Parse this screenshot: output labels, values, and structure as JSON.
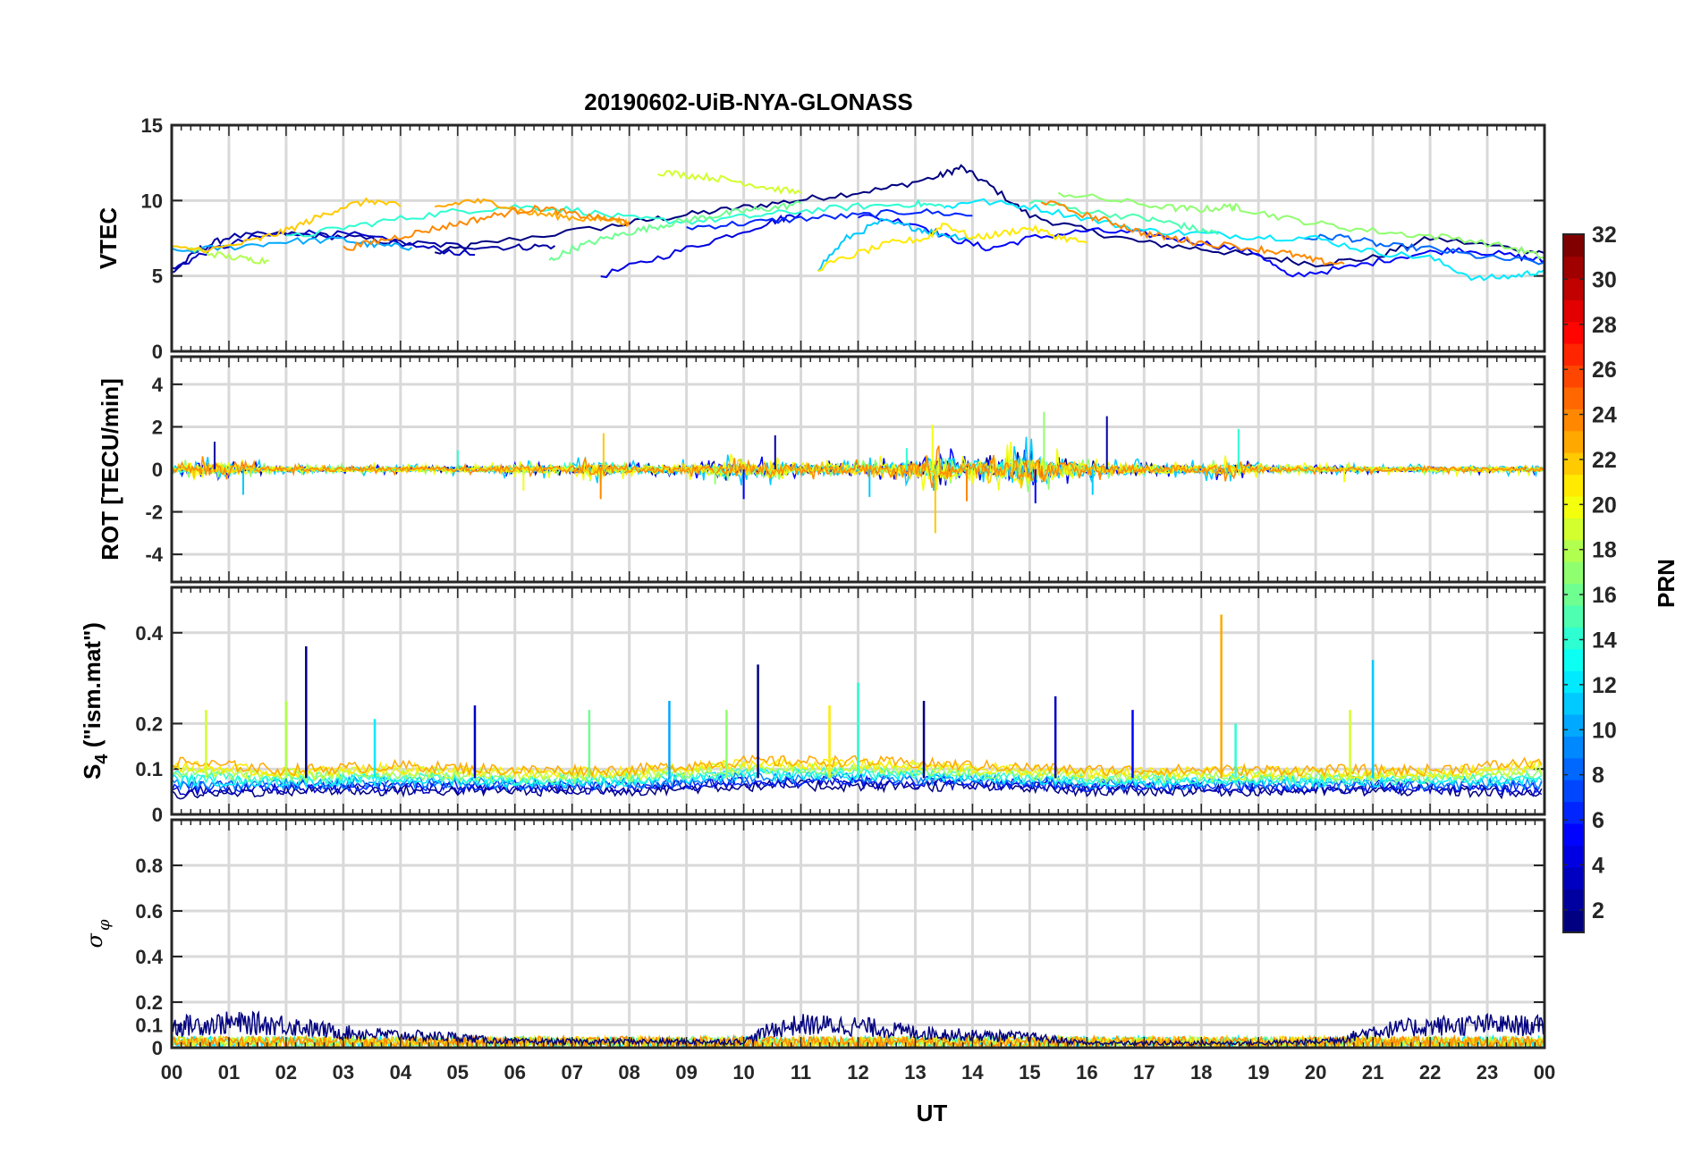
{
  "chart_data": {
    "type": "line",
    "title": "20190602-UiB-NYA-GLONASS",
    "xlabel": "UT",
    "x_tick_labels": [
      "00",
      "01",
      "02",
      "03",
      "04",
      "05",
      "06",
      "07",
      "08",
      "09",
      "10",
      "11",
      "12",
      "13",
      "14",
      "15",
      "16",
      "17",
      "18",
      "19",
      "20",
      "21",
      "22",
      "23",
      "00"
    ],
    "xlim_hours": [
      0,
      24
    ],
    "grid": true,
    "colormap": "jet",
    "colorbar": {
      "label": "PRN",
      "range": [
        1,
        32
      ],
      "tick_labels": [
        "2",
        "4",
        "6",
        "8",
        "10",
        "12",
        "14",
        "16",
        "18",
        "20",
        "22",
        "24",
        "26",
        "28",
        "30",
        "32"
      ],
      "placement": "right"
    },
    "panels": [
      {
        "key": "vtec",
        "ylabel": "VTEC",
        "ylim": [
          0,
          15
        ],
        "y_ticks": [
          0,
          5,
          10,
          15
        ],
        "series": [
          {
            "prn": 1,
            "x": [
              4.6,
              5.5,
              7.5,
              8.5,
              9.5,
              10.5,
              11.5,
              12.5,
              13.4,
              13.8,
              14.3,
              15.0,
              16.0,
              17.0,
              18.0,
              19.0,
              20.0,
              21.0,
              22.0,
              23.5,
              24.0
            ],
            "y": [
              6.5,
              7.2,
              8.2,
              8.8,
              9.3,
              9.8,
              10.3,
              10.8,
              11.6,
              12.2,
              11.0,
              9.0,
              8.0,
              7.2,
              6.8,
              6.3,
              5.8,
              6.2,
              7.5,
              6.8,
              6.5
            ]
          },
          {
            "prn": 2,
            "x": [
              0.0,
              0.5,
              1.0,
              2.0,
              3.0,
              4.0,
              5.0,
              6.0,
              6.7
            ],
            "y": [
              5.2,
              6.8,
              7.6,
              7.8,
              7.6,
              7.2,
              7.0,
              6.9,
              7.0
            ]
          },
          {
            "prn": 3,
            "x": [
              0.0,
              0.6,
              1.4,
              2.2,
              3.2,
              4.4,
              5.3
            ],
            "y": [
              5.4,
              6.6,
              7.5,
              7.9,
              7.7,
              6.9,
              6.4
            ]
          },
          {
            "prn": 4,
            "x": [
              7.5,
              8.5,
              9.5,
              10.5,
              11.0
            ],
            "y": [
              5.0,
              6.2,
              7.4,
              8.6,
              9.2
            ]
          },
          {
            "prn": 5,
            "x": [
              12.0,
              13.0,
              13.6,
              14.3,
              15.0,
              16.0,
              17.0,
              18.0,
              19.0,
              19.5,
              20.5,
              21.5,
              22.5,
              23.5,
              24.0
            ],
            "y": [
              9.0,
              8.5,
              7.5,
              6.8,
              7.5,
              8.0,
              7.8,
              7.2,
              6.5,
              5.0,
              5.5,
              6.3,
              6.8,
              6.3,
              6.0
            ]
          },
          {
            "prn": 6,
            "x": [
              9.0,
              10.0,
              11.0,
              12.0,
              13.0,
              14.0
            ],
            "y": [
              8.2,
              8.5,
              8.8,
              9.0,
              9.3,
              9.0
            ]
          },
          {
            "prn": 8,
            "x": [
              19.8,
              20.5,
              21.2,
              22.0,
              23.0,
              24.0
            ],
            "y": [
              7.5,
              7.6,
              7.0,
              6.8,
              6.2,
              5.9
            ]
          },
          {
            "prn": 10,
            "x": [
              0.0,
              1.0,
              2.0,
              3.0,
              3.6,
              4.2
            ],
            "y": [
              6.6,
              6.9,
              7.3,
              7.4,
              7.0,
              6.9
            ]
          },
          {
            "prn": 11,
            "x": [
              11.3,
              11.8,
              12.4,
              13.0,
              13.4,
              14.0
            ],
            "y": [
              5.5,
              7.5,
              8.6,
              8.2,
              7.8,
              7.5
            ]
          },
          {
            "prn": 12,
            "x": [
              13.5,
              14.0,
              15.0,
              16.0,
              17.0,
              18.0,
              19.0,
              20.0,
              21.0,
              22.0,
              22.8,
              23.5,
              24.0
            ],
            "y": [
              9.5,
              10.0,
              9.6,
              8.8,
              8.0,
              7.8,
              7.6,
              7.5,
              6.6,
              6.2,
              4.8,
              5.0,
              5.4
            ]
          },
          {
            "prn": 14,
            "x": [
              2.0,
              3.0,
              4.0,
              5.0,
              6.0,
              7.0,
              8.0,
              9.0,
              10.0,
              11.0,
              12.0,
              13.0,
              13.5
            ],
            "y": [
              7.5,
              8.2,
              8.8,
              9.3,
              9.6,
              9.4,
              8.8,
              8.6,
              8.9,
              9.3,
              9.6,
              9.8,
              9.6
            ]
          },
          {
            "prn": 15,
            "x": [
              15.0,
              16.0,
              17.0,
              17.5,
              18.0,
              18.3
            ],
            "y": [
              10.0,
              9.3,
              8.8,
              8.5,
              8.0,
              7.8
            ]
          },
          {
            "prn": 16,
            "x": [
              6.6,
              7.0,
              7.5,
              8.0,
              8.5,
              9.0,
              9.5,
              10.0,
              10.5,
              11.0
            ],
            "y": [
              6.0,
              6.8,
              7.4,
              7.9,
              8.3,
              8.7,
              9.0,
              9.3,
              9.5,
              9.8
            ]
          },
          {
            "prn": 17,
            "x": [
              15.5,
              16.5,
              17.5,
              18.0,
              18.5,
              18.7,
              19.5,
              20.5,
              21.5,
              22.5,
              23.5,
              24.0
            ],
            "y": [
              10.5,
              10.0,
              9.5,
              9.4,
              9.6,
              9.5,
              8.8,
              8.2,
              7.8,
              7.5,
              6.8,
              6.2
            ]
          },
          {
            "prn": 18,
            "x": [
              0.3,
              0.8,
              1.3,
              1.7
            ],
            "y": [
              6.8,
              6.4,
              6.1,
              6.0
            ]
          },
          {
            "prn": 19,
            "x": [
              8.5,
              9.0,
              9.5,
              10.0,
              10.5,
              11.0
            ],
            "y": [
              11.9,
              11.7,
              11.5,
              11.2,
              10.8,
              10.5
            ]
          },
          {
            "prn": 21,
            "x": [
              11.3,
              12.0,
              12.6,
              13.2,
              13.5,
              14.0,
              14.5,
              15.0,
              15.5,
              16.0
            ],
            "y": [
              5.5,
              6.5,
              7.2,
              7.5,
              8.5,
              7.5,
              7.8,
              8.2,
              7.6,
              7.2
            ]
          },
          {
            "prn": 22,
            "x": [
              0.0,
              0.8,
              1.5,
              2.0,
              2.5,
              3.0,
              3.5,
              4.0
            ],
            "y": [
              6.8,
              6.8,
              7.4,
              8.0,
              8.8,
              9.6,
              10.0,
              9.6
            ]
          },
          {
            "prn": 23,
            "x": [
              4.6,
              5.2,
              5.7,
              6.2,
              6.7,
              7.2,
              7.8,
              8.0
            ],
            "y": [
              9.5,
              10.0,
              9.8,
              9.2,
              9.0,
              8.8,
              8.7,
              8.4
            ]
          },
          {
            "prn": 24,
            "x": [
              3.0,
              3.6,
              4.2,
              4.8,
              5.4,
              6.0,
              6.5,
              7.0,
              7.5,
              8.0
            ],
            "y": [
              6.8,
              7.3,
              7.8,
              8.3,
              8.8,
              9.3,
              9.5,
              9.1,
              8.8,
              8.6
            ]
          },
          {
            "prn": 24,
            "x": [
              15.2,
              16.0,
              16.5,
              17.0,
              17.5,
              18.0,
              19.0,
              19.5,
              20.0,
              20.5
            ],
            "y": [
              10.0,
              9.0,
              8.5,
              7.8,
              7.5,
              7.2,
              6.8,
              6.5,
              6.0,
              5.8
            ]
          }
        ]
      },
      {
        "key": "rot",
        "ylabel": "ROT [TECU/min]",
        "ylim": [
          -5.3,
          5.3
        ],
        "y_ticks": [
          -4,
          -2,
          0,
          2,
          4
        ],
        "amplitude_envelope": {
          "x": [
            0,
            0.5,
            1.0,
            2.0,
            3.0,
            4.0,
            5.0,
            6.0,
            7.0,
            7.5,
            8.0,
            9.0,
            10.0,
            10.5,
            11.0,
            12.0,
            13.0,
            13.5,
            14.0,
            15.0,
            15.5,
            16.0,
            17.0,
            18.0,
            18.5,
            19.0,
            20.0,
            21.0,
            22.0,
            23.0,
            24.0
          ],
          "y": [
            0.3,
            0.9,
            0.6,
            0.3,
            0.3,
            0.3,
            0.3,
            0.4,
            0.5,
            0.8,
            0.4,
            0.5,
            0.8,
            0.9,
            0.6,
            0.6,
            0.9,
            1.5,
            0.9,
            1.6,
            1.0,
            0.7,
            0.5,
            0.5,
            0.8,
            0.4,
            0.3,
            0.3,
            0.3,
            0.3,
            0.3
          ]
        },
        "spikes": [
          {
            "x": 0.75,
            "y": 1.3
          },
          {
            "x": 1.25,
            "y": -1.2
          },
          {
            "x": 5.0,
            "y": 0.9
          },
          {
            "x": 6.15,
            "y": -1.0
          },
          {
            "x": 7.55,
            "y": 1.7
          },
          {
            "x": 7.5,
            "y": -1.4
          },
          {
            "x": 9.5,
            "y": -0.7
          },
          {
            "x": 10.0,
            "y": -1.4
          },
          {
            "x": 10.55,
            "y": 1.6
          },
          {
            "x": 12.2,
            "y": -1.3
          },
          {
            "x": 12.85,
            "y": 1.0
          },
          {
            "x": 13.3,
            "y": 2.1
          },
          {
            "x": 13.35,
            "y": -3.0
          },
          {
            "x": 13.9,
            "y": -1.5
          },
          {
            "x": 15.25,
            "y": 2.7
          },
          {
            "x": 15.1,
            "y": -1.6
          },
          {
            "x": 16.35,
            "y": 2.5
          },
          {
            "x": 16.1,
            "y": -1.2
          },
          {
            "x": 18.65,
            "y": 1.9
          },
          {
            "x": 20.5,
            "y": -0.6
          }
        ]
      },
      {
        "key": "s4",
        "ylabel": "S4 (\"ism.mat\")",
        "ylim": [
          0,
          0.5
        ],
        "y_ticks": [
          0,
          0.1,
          0.2,
          0.4
        ],
        "baseline_envelope": {
          "x": [
            0,
            2,
            4,
            6,
            8,
            10,
            12,
            14,
            16,
            18,
            20,
            22,
            24
          ],
          "low": [
            0.04,
            0.05,
            0.05,
            0.05,
            0.05,
            0.06,
            0.06,
            0.06,
            0.05,
            0.05,
            0.05,
            0.05,
            0.04
          ],
          "high": [
            0.12,
            0.1,
            0.11,
            0.1,
            0.1,
            0.12,
            0.12,
            0.11,
            0.1,
            0.1,
            0.1,
            0.1,
            0.12
          ]
        },
        "spikes": [
          {
            "x": 0.6,
            "y": 0.23
          },
          {
            "x": 2.35,
            "y": 0.37
          },
          {
            "x": 2.0,
            "y": 0.25
          },
          {
            "x": 3.55,
            "y": 0.21
          },
          {
            "x": 5.3,
            "y": 0.24
          },
          {
            "x": 7.3,
            "y": 0.23
          },
          {
            "x": 8.7,
            "y": 0.25
          },
          {
            "x": 9.7,
            "y": 0.23
          },
          {
            "x": 10.25,
            "y": 0.33
          },
          {
            "x": 11.5,
            "y": 0.24
          },
          {
            "x": 12.0,
            "y": 0.29
          },
          {
            "x": 13.15,
            "y": 0.25
          },
          {
            "x": 15.45,
            "y": 0.26
          },
          {
            "x": 16.8,
            "y": 0.23
          },
          {
            "x": 18.35,
            "y": 0.44
          },
          {
            "x": 18.6,
            "y": 0.2
          },
          {
            "x": 21.0,
            "y": 0.34
          },
          {
            "x": 20.6,
            "y": 0.23
          }
        ]
      },
      {
        "key": "sigma_phi",
        "ylabel": "σ φ",
        "ylim": [
          0,
          1
        ],
        "y_ticks": [
          0,
          0.1,
          0.2,
          0.4,
          0.6,
          0.8
        ],
        "dark_prn_envelope": {
          "x": [
            0,
            1,
            2,
            2.5,
            3,
            4,
            5,
            5.5,
            6,
            10,
            10.5,
            11,
            12,
            13,
            14,
            15,
            15.5,
            16,
            17,
            18,
            19,
            20,
            20.5,
            21,
            22,
            23,
            24
          ],
          "y": [
            0.14,
            0.16,
            0.15,
            0.12,
            0.1,
            0.08,
            0.07,
            0.05,
            0.04,
            0.04,
            0.12,
            0.15,
            0.14,
            0.1,
            0.08,
            0.07,
            0.05,
            0.03,
            0.03,
            0.03,
            0.03,
            0.04,
            0.06,
            0.11,
            0.14,
            0.15,
            0.14
          ]
        },
        "other_prn_level": 0.05
      }
    ]
  }
}
